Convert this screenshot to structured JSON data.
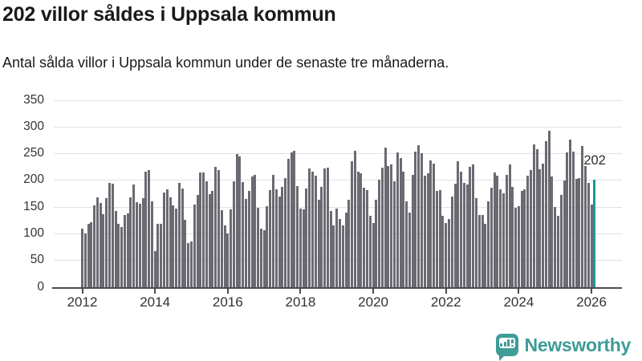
{
  "header": {
    "title": "202 villor såldes i Uppsala kommun",
    "subtitle": "Antal sålda villor i Uppsala kommun under de senaste tre månaderna."
  },
  "chart_data": {
    "type": "bar",
    "title": "202 villor såldes i Uppsala kommun",
    "subtitle": "Antal sålda villor i Uppsala kommun under de senaste tre månaderna.",
    "x_start": "2012-01",
    "frequency": "monthly",
    "xticks": [
      2012,
      2014,
      2016,
      2018,
      2020,
      2022,
      2024,
      2026
    ],
    "yticks": [
      0,
      50,
      100,
      150,
      200,
      250,
      300,
      350
    ],
    "ylim": [
      0,
      350
    ],
    "grid": true,
    "legend_position": "none",
    "bar_color": "#6a6a72",
    "values": [
      110,
      100,
      118,
      121,
      153,
      168,
      157,
      136,
      167,
      195,
      194,
      143,
      119,
      112,
      135,
      138,
      168,
      192,
      159,
      156,
      166,
      217,
      220,
      160,
      67,
      119,
      119,
      177,
      183,
      168,
      153,
      147,
      196,
      185,
      126,
      82,
      85,
      155,
      172,
      215,
      215,
      198,
      175,
      180,
      226,
      219,
      144,
      115,
      100,
      146,
      198,
      249,
      245,
      197,
      165,
      180,
      207,
      210,
      148,
      110,
      106,
      152,
      182,
      211,
      184,
      170,
      188,
      205,
      240,
      253,
      256,
      190,
      147,
      146,
      185,
      222,
      217,
      209,
      163,
      188,
      222,
      224,
      143,
      116,
      147,
      128,
      115,
      139,
      163,
      236,
      255,
      217,
      214,
      186,
      182,
      133,
      120,
      163,
      202,
      224,
      262,
      227,
      230,
      199,
      252,
      242,
      217,
      160,
      140,
      210,
      254,
      266,
      251,
      209,
      214,
      237,
      231,
      180,
      182,
      134,
      120,
      128,
      170,
      194,
      236,
      217,
      196,
      192,
      226,
      230,
      167,
      135,
      135,
      118,
      160,
      187,
      215,
      209,
      183,
      176,
      210,
      230,
      188,
      149,
      152,
      181,
      183,
      209,
      220,
      268,
      258,
      221,
      231,
      273,
      293,
      208,
      150,
      134,
      172,
      200,
      252,
      277,
      254,
      203,
      204,
      264,
      238,
      195,
      155,
      202
    ],
    "highlight": {
      "index": 169,
      "value": 202,
      "label": "202",
      "color": "#169c98"
    }
  },
  "footer": {
    "brand": "Newsworthy"
  },
  "colors": {
    "bar": "#6a6a72",
    "highlight": "#169c98",
    "brand": "#3f9c96",
    "gridline": "#e2e2e2",
    "axis": "#4a4a50",
    "text": "#1a1a1a",
    "tick_text": "#333333"
  }
}
